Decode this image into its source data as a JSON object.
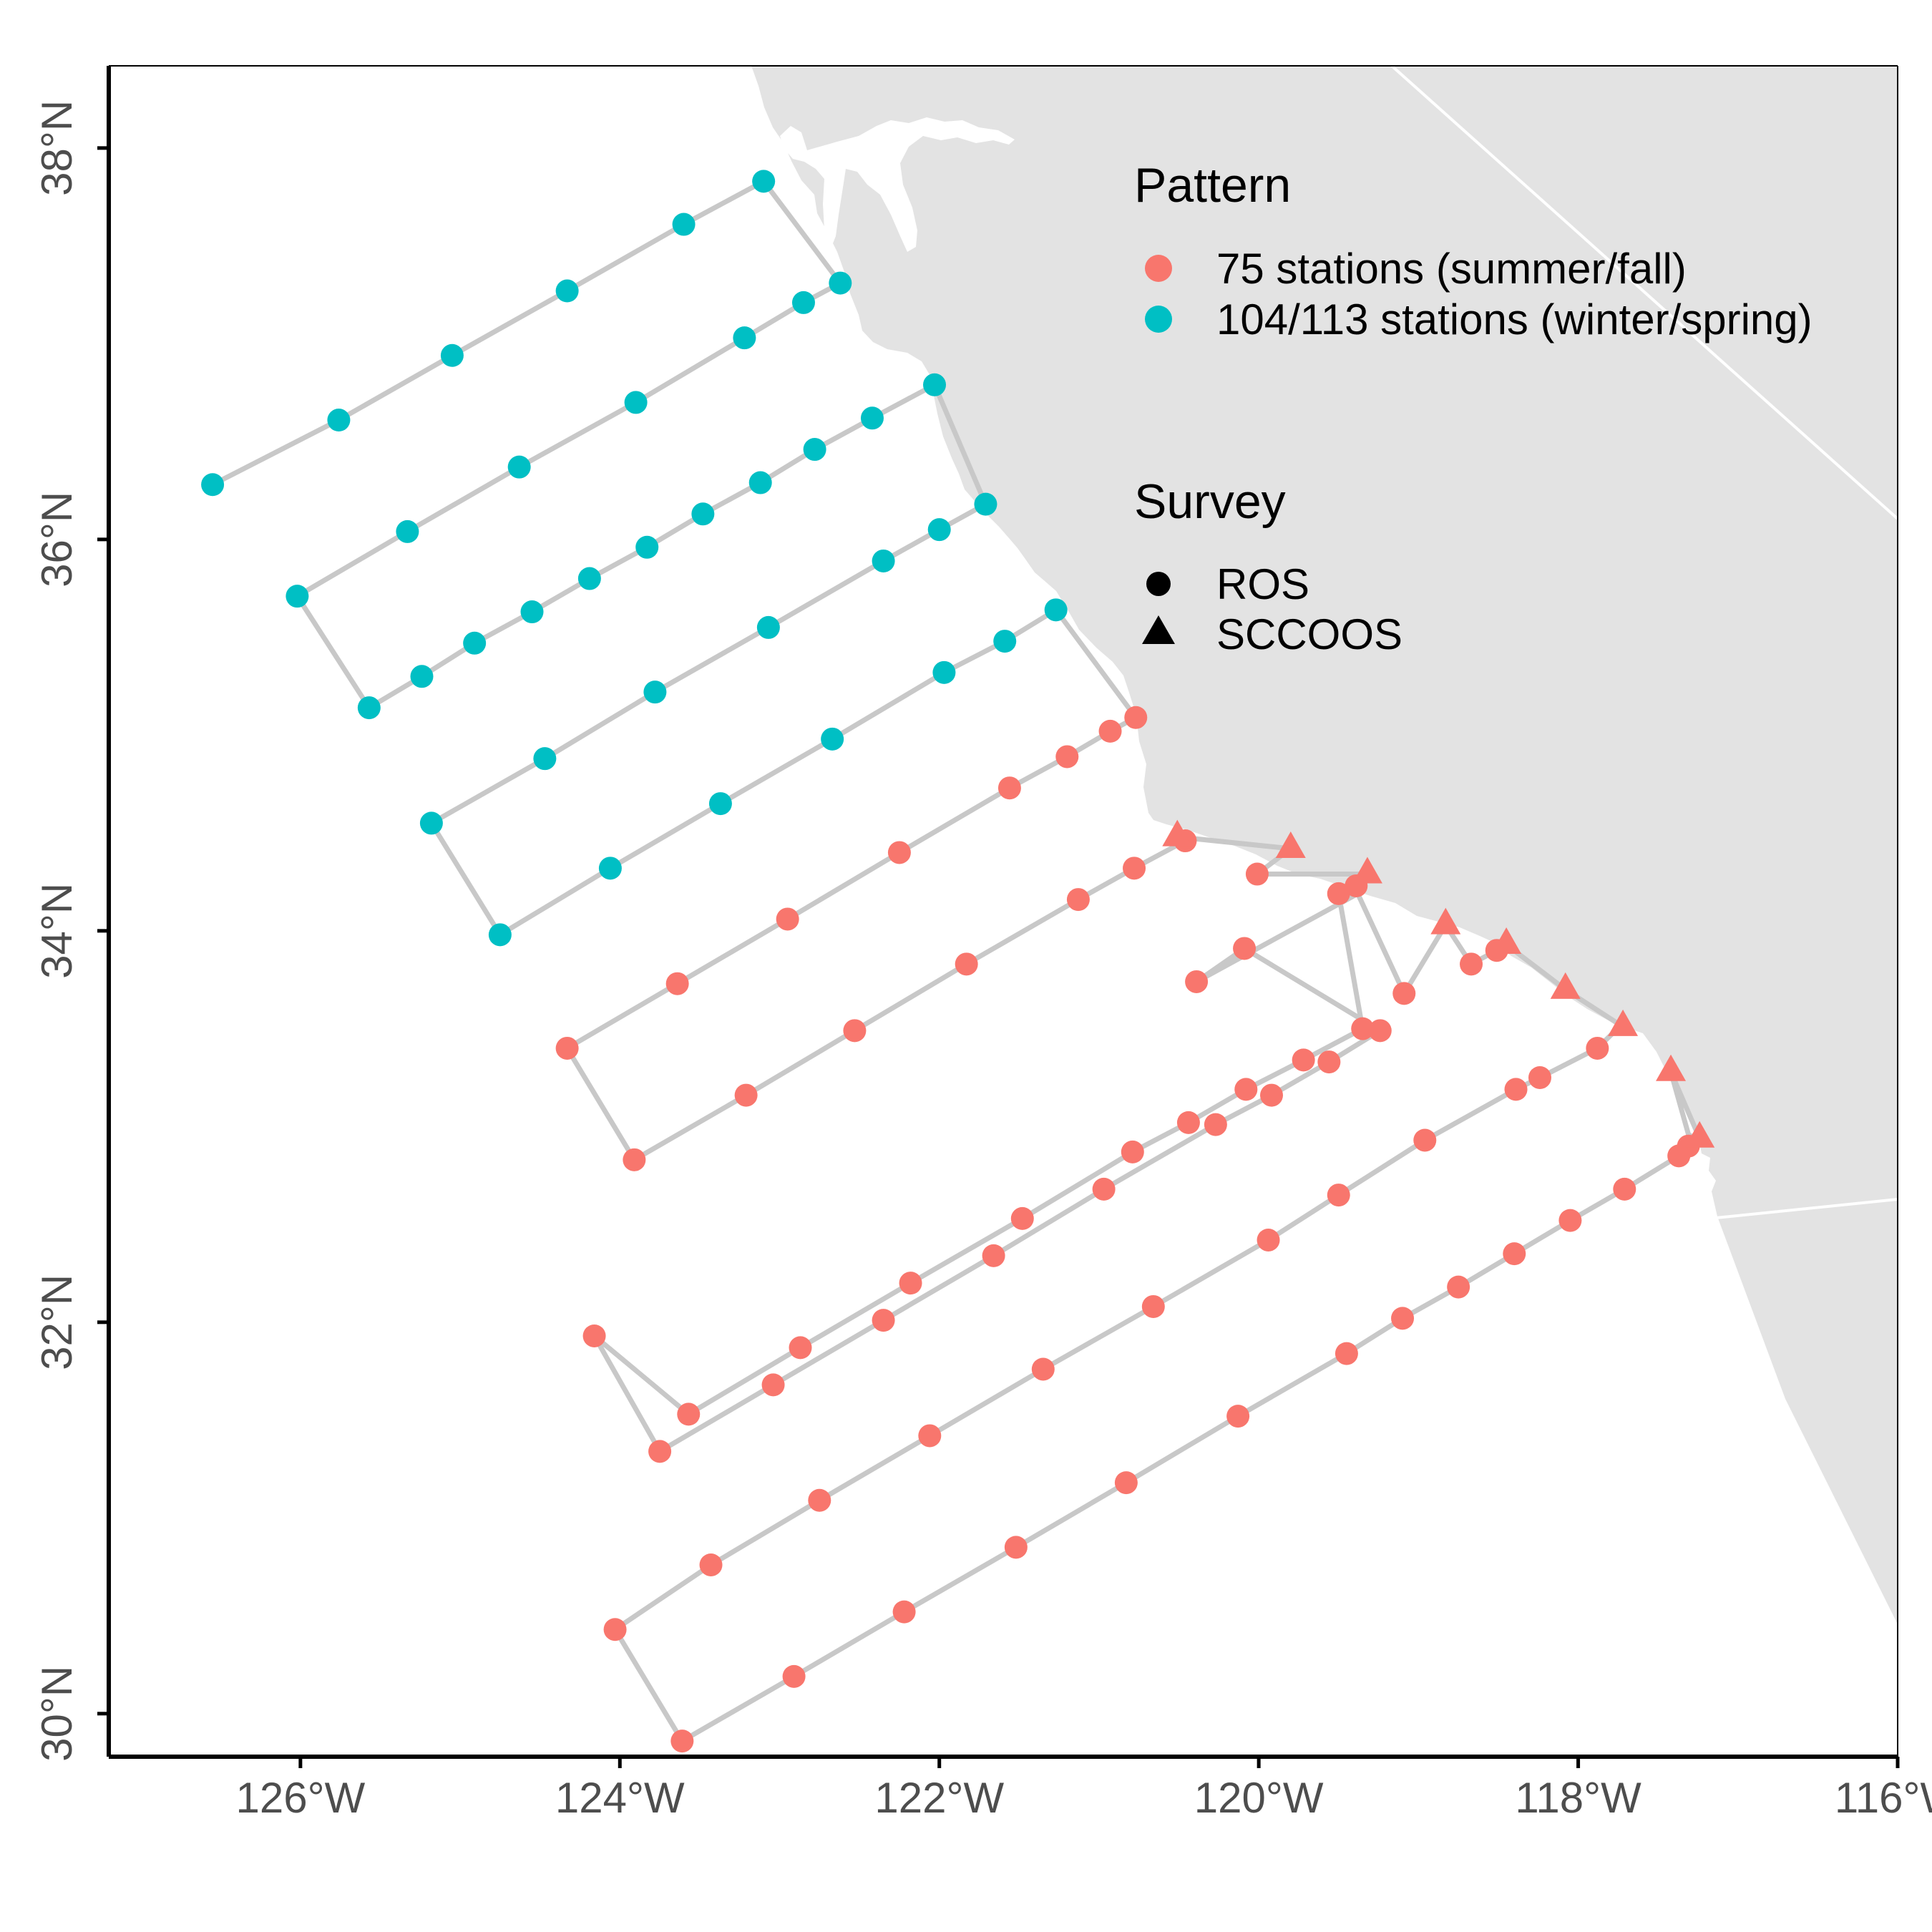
{
  "map": {
    "x_ticks": [
      {
        "lon": -126,
        "label": "126°W"
      },
      {
        "lon": -124,
        "label": "124°W"
      },
      {
        "lon": -122,
        "label": "122°W"
      },
      {
        "lon": -120,
        "label": "120°W"
      },
      {
        "lon": -118,
        "label": "118°W"
      },
      {
        "lon": -116,
        "label": "116°W"
      }
    ],
    "y_ticks": [
      {
        "lat": 30,
        "label": "30°N"
      },
      {
        "lat": 32,
        "label": "32°N"
      },
      {
        "lat": 34,
        "label": "34°N"
      },
      {
        "lat": 36,
        "label": "36°N"
      },
      {
        "lat": 38,
        "label": "38°N"
      }
    ],
    "xlim": [
      -127.2,
      -116.0
    ],
    "ylim": [
      29.78,
      38.42
    ],
    "colors": {
      "land": "#e3e3e3",
      "track": "#c8c8c8",
      "summer_fall": "#f8766d",
      "winter_spring": "#00bfc4",
      "axis": "#000000",
      "tick_text": "#4d4d4d"
    }
  },
  "legend": {
    "pattern": {
      "title": "Pattern",
      "items": [
        {
          "label": "75 stations (summer/fall)",
          "color": "#f8766d"
        },
        {
          "label": "104/113 stations (winter/spring)",
          "color": "#00bfc4"
        }
      ]
    },
    "survey": {
      "title": "Survey",
      "items": [
        {
          "label": "ROS",
          "shape": "circle"
        },
        {
          "label": "SCCOOS",
          "shape": "triangle"
        }
      ]
    }
  },
  "chart_data": {
    "type": "scatter",
    "description_units": "longitude (degrees E, negative = W), latitude (degrees N)",
    "cruise_track": [
      [
        -126.55,
        36.28
      ],
      [
        -125.76,
        36.61
      ],
      [
        -125.05,
        36.94
      ],
      [
        -124.33,
        37.27
      ],
      [
        -123.6,
        37.61
      ],
      [
        -123.1,
        37.83
      ],
      [
        -122.62,
        37.31
      ],
      [
        -122.85,
        37.21
      ],
      [
        -123.22,
        37.03
      ],
      [
        -123.9,
        36.7
      ],
      [
        -124.63,
        36.37
      ],
      [
        -125.33,
        36.04
      ],
      [
        -126.02,
        35.71
      ],
      [
        -125.57,
        35.14
      ],
      [
        -125.24,
        35.3
      ],
      [
        -124.91,
        35.47
      ],
      [
        -124.55,
        35.63
      ],
      [
        -124.19,
        35.8
      ],
      [
        -123.83,
        35.96
      ],
      [
        -123.48,
        36.13
      ],
      [
        -123.12,
        36.29
      ],
      [
        -122.78,
        36.46
      ],
      [
        -122.42,
        36.62
      ],
      [
        -122.03,
        36.79
      ],
      [
        -121.71,
        36.18
      ],
      [
        -122.0,
        36.05
      ],
      [
        -122.35,
        35.89
      ],
      [
        -123.07,
        35.55
      ],
      [
        -123.78,
        35.22
      ],
      [
        -124.47,
        34.88
      ],
      [
        -125.18,
        34.55
      ],
      [
        -124.75,
        33.98
      ],
      [
        -124.06,
        34.32
      ],
      [
        -123.37,
        34.65
      ],
      [
        -122.67,
        34.98
      ],
      [
        -121.97,
        35.32
      ],
      [
        -121.59,
        35.48
      ],
      [
        -121.27,
        35.64
      ],
      [
        -120.77,
        35.09
      ],
      [
        -120.93,
        35.02
      ],
      [
        -121.2,
        34.89
      ],
      [
        -121.56,
        34.73
      ],
      [
        -122.25,
        34.4
      ],
      [
        -122.95,
        34.06
      ],
      [
        -123.64,
        33.73
      ],
      [
        -124.33,
        33.4
      ],
      [
        -123.91,
        32.83
      ],
      [
        -123.21,
        33.16
      ],
      [
        -122.53,
        33.49
      ],
      [
        -121.83,
        33.83
      ],
      [
        -121.13,
        34.16
      ],
      [
        -120.78,
        34.32
      ],
      [
        -120.46,
        34.46
      ],
      [
        -120.51,
        34.48
      ],
      [
        -119.8,
        34.42
      ],
      [
        -120.01,
        34.29
      ],
      [
        -119.32,
        34.29
      ],
      [
        -119.39,
        34.23
      ],
      [
        -119.5,
        34.19
      ],
      [
        -119.35,
        33.5
      ],
      [
        -119.72,
        33.34
      ],
      [
        -120.08,
        33.19
      ],
      [
        -120.44,
        33.02
      ],
      [
        -120.79,
        32.87
      ],
      [
        -121.48,
        32.53
      ],
      [
        -122.18,
        32.2
      ],
      [
        -122.87,
        31.87
      ],
      [
        -123.57,
        31.53
      ],
      [
        -124.16,
        31.93
      ],
      [
        -123.75,
        31.34
      ],
      [
        -123.04,
        31.68
      ],
      [
        -122.35,
        32.01
      ],
      [
        -121.66,
        32.34
      ],
      [
        -120.97,
        32.68
      ],
      [
        -120.27,
        33.01
      ],
      [
        -119.92,
        33.16
      ],
      [
        -119.56,
        33.33
      ],
      [
        -119.24,
        33.49
      ],
      [
        -120.09,
        33.91
      ],
      [
        -120.39,
        33.74
      ],
      [
        -119.38,
        34.19
      ],
      [
        -119.09,
        33.68
      ],
      [
        -118.83,
        34.03
      ],
      [
        -118.67,
        33.83
      ],
      [
        -118.51,
        33.9
      ],
      [
        -118.45,
        33.93
      ],
      [
        -118.08,
        33.7
      ],
      [
        -117.72,
        33.51
      ],
      [
        -117.78,
        33.48
      ],
      [
        -117.88,
        33.4
      ],
      [
        -118.24,
        33.25
      ],
      [
        -118.39,
        33.19
      ],
      [
        -118.96,
        32.93
      ],
      [
        -119.5,
        32.65
      ],
      [
        -119.94,
        32.42
      ],
      [
        -120.66,
        32.08
      ],
      [
        -121.35,
        31.76
      ],
      [
        -122.06,
        31.42
      ],
      [
        -122.75,
        31.09
      ],
      [
        -123.43,
        30.76
      ],
      [
        -124.03,
        30.43
      ],
      [
        -123.61,
        29.86
      ],
      [
        -122.91,
        30.19
      ],
      [
        -122.22,
        30.52
      ],
      [
        -121.52,
        30.85
      ],
      [
        -120.83,
        31.18
      ],
      [
        -120.13,
        31.52
      ],
      [
        -119.45,
        31.84
      ],
      [
        -119.1,
        32.02
      ],
      [
        -118.75,
        32.18
      ],
      [
        -118.4,
        32.35
      ],
      [
        -118.05,
        32.52
      ],
      [
        -117.71,
        32.68
      ],
      [
        -117.37,
        32.85
      ],
      [
        -117.24,
        32.92
      ],
      [
        -117.31,
        32.96
      ],
      [
        -117.42,
        33.28
      ],
      [
        -117.24,
        32.94
      ]
    ],
    "series": [
      {
        "name": "104/113 stations (winter/spring)",
        "survey": "ROS",
        "color": "#00bfc4",
        "points": [
          [
            -126.55,
            36.28
          ],
          [
            -125.76,
            36.61
          ],
          [
            -125.05,
            36.94
          ],
          [
            -124.33,
            37.27
          ],
          [
            -123.6,
            37.61
          ],
          [
            -123.1,
            37.83
          ],
          [
            -122.62,
            37.31
          ],
          [
            -122.85,
            37.21
          ],
          [
            -123.22,
            37.03
          ],
          [
            -123.9,
            36.7
          ],
          [
            -124.63,
            36.37
          ],
          [
            -125.33,
            36.04
          ],
          [
            -126.02,
            35.71
          ],
          [
            -125.57,
            35.14
          ],
          [
            -125.24,
            35.3
          ],
          [
            -124.91,
            35.47
          ],
          [
            -124.55,
            35.63
          ],
          [
            -124.19,
            35.8
          ],
          [
            -123.83,
            35.96
          ],
          [
            -123.48,
            36.13
          ],
          [
            -123.12,
            36.29
          ],
          [
            -122.78,
            36.46
          ],
          [
            -122.42,
            36.62
          ],
          [
            -122.03,
            36.79
          ],
          [
            -121.71,
            36.18
          ],
          [
            -122.0,
            36.05
          ],
          [
            -122.35,
            35.89
          ],
          [
            -123.07,
            35.55
          ],
          [
            -123.78,
            35.22
          ],
          [
            -124.47,
            34.88
          ],
          [
            -125.18,
            34.55
          ],
          [
            -124.75,
            33.98
          ],
          [
            -124.06,
            34.32
          ],
          [
            -123.37,
            34.65
          ],
          [
            -122.67,
            34.98
          ],
          [
            -121.97,
            35.32
          ],
          [
            -121.59,
            35.48
          ],
          [
            -121.27,
            35.64
          ]
        ]
      },
      {
        "name": "75 stations (summer/fall)",
        "survey": "ROS",
        "color": "#f8766d",
        "points": [
          [
            -120.77,
            35.09
          ],
          [
            -120.93,
            35.02
          ],
          [
            -121.2,
            34.89
          ],
          [
            -121.56,
            34.73
          ],
          [
            -122.25,
            34.4
          ],
          [
            -122.95,
            34.06
          ],
          [
            -123.64,
            33.73
          ],
          [
            -124.33,
            33.4
          ],
          [
            -123.91,
            32.83
          ],
          [
            -123.21,
            33.16
          ],
          [
            -122.53,
            33.49
          ],
          [
            -121.83,
            33.83
          ],
          [
            -121.13,
            34.16
          ],
          [
            -120.78,
            34.32
          ],
          [
            -120.46,
            34.46
          ],
          [
            -120.01,
            34.29
          ],
          [
            -119.5,
            34.19
          ],
          [
            -119.39,
            34.23
          ],
          [
            -119.35,
            33.5
          ],
          [
            -119.72,
            33.34
          ],
          [
            -120.08,
            33.19
          ],
          [
            -120.44,
            33.02
          ],
          [
            -120.79,
            32.87
          ],
          [
            -121.48,
            32.53
          ],
          [
            -122.18,
            32.2
          ],
          [
            -122.87,
            31.87
          ],
          [
            -123.57,
            31.53
          ],
          [
            -124.16,
            31.93
          ],
          [
            -123.75,
            31.34
          ],
          [
            -123.04,
            31.68
          ],
          [
            -122.35,
            32.01
          ],
          [
            -121.66,
            32.34
          ],
          [
            -120.97,
            32.68
          ],
          [
            -120.27,
            33.01
          ],
          [
            -119.92,
            33.16
          ],
          [
            -119.56,
            33.33
          ],
          [
            -119.24,
            33.49
          ],
          [
            -120.09,
            33.91
          ],
          [
            -120.39,
            33.74
          ],
          [
            -119.09,
            33.68
          ],
          [
            -118.67,
            33.83
          ],
          [
            -118.51,
            33.9
          ],
          [
            -117.88,
            33.4
          ],
          [
            -118.24,
            33.25
          ],
          [
            -118.39,
            33.19
          ],
          [
            -118.96,
            32.93
          ],
          [
            -119.5,
            32.65
          ],
          [
            -119.94,
            32.42
          ],
          [
            -120.66,
            32.08
          ],
          [
            -121.35,
            31.76
          ],
          [
            -122.06,
            31.42
          ],
          [
            -122.75,
            31.09
          ],
          [
            -123.43,
            30.76
          ],
          [
            -124.03,
            30.43
          ],
          [
            -123.61,
            29.86
          ],
          [
            -122.91,
            30.19
          ],
          [
            -122.22,
            30.52
          ],
          [
            -121.52,
            30.85
          ],
          [
            -120.83,
            31.18
          ],
          [
            -120.13,
            31.52
          ],
          [
            -119.45,
            31.84
          ],
          [
            -119.1,
            32.02
          ],
          [
            -118.75,
            32.18
          ],
          [
            -118.4,
            32.35
          ],
          [
            -118.05,
            32.52
          ],
          [
            -117.71,
            32.68
          ],
          [
            -117.37,
            32.85
          ],
          [
            -117.31,
            32.9
          ]
        ]
      },
      {
        "name": "75 stations (summer/fall)",
        "survey": "SCCOOS",
        "color": "#f8766d",
        "points": [
          [
            -120.51,
            34.48
          ],
          [
            -119.8,
            34.42
          ],
          [
            -119.32,
            34.29
          ],
          [
            -118.83,
            34.03
          ],
          [
            -118.45,
            33.93
          ],
          [
            -118.08,
            33.7
          ],
          [
            -117.72,
            33.51
          ],
          [
            -117.42,
            33.28
          ],
          [
            -117.24,
            32.94
          ]
        ]
      }
    ]
  }
}
